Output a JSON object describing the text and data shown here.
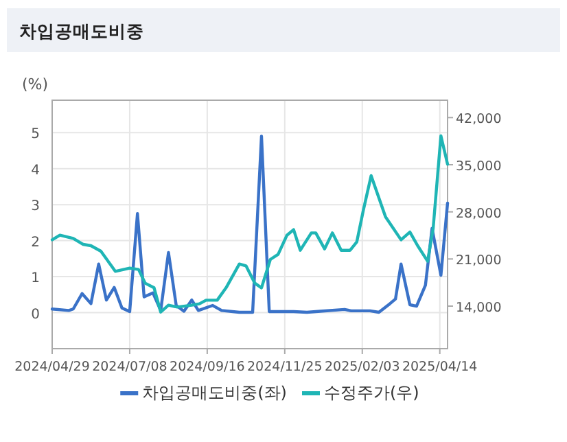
{
  "chart_data": {
    "type": "line",
    "title": "차입공매도비중",
    "ylabel": "(%)",
    "xlim": [
      "2024-04-29",
      "2025-04-21"
    ],
    "xticks": [
      {
        "value": "2024-04-29",
        "label": "2024/04/29"
      },
      {
        "value": "2024-07-08",
        "label": "2024/07/08"
      },
      {
        "value": "2024-09-16",
        "label": "2024/09/16"
      },
      {
        "value": "2024-11-25",
        "label": "2024/11/25"
      },
      {
        "value": "2025-02-03",
        "label": "2025/02/03"
      },
      {
        "value": "2025-04-14",
        "label": "2025/04/14"
      }
    ],
    "ylim": [
      -1,
      5.9
    ],
    "yticks": [
      0,
      1,
      2,
      3,
      4,
      5
    ],
    "y2lim": [
      7680,
      44580
    ],
    "y2ticks": [
      {
        "value": 14000,
        "label": "14,000"
      },
      {
        "value": 21000,
        "label": "21,000"
      },
      {
        "value": 28000,
        "label": "28,000"
      },
      {
        "value": 35000,
        "label": "35,000"
      },
      {
        "value": 42000,
        "label": "42,000"
      }
    ],
    "grid": true,
    "legend": "bottom",
    "marker": "none",
    "series": [
      {
        "name": "차입공매도비중(좌)",
        "color": "#3a72c8",
        "x": [
          "2024-04-29",
          "2024-05-14",
          "2024-05-18",
          "2024-05-26",
          "2024-06-03",
          "2024-06-10",
          "2024-06-17",
          "2024-06-24",
          "2024-07-01",
          "2024-07-08",
          "2024-07-15",
          "2024-07-21",
          "2024-07-29",
          "2024-08-05",
          "2024-08-12",
          "2024-08-19",
          "2024-08-26",
          "2024-09-02",
          "2024-09-08",
          "2024-09-21",
          "2024-09-29",
          "2024-10-15",
          "2024-10-27",
          "2024-11-04",
          "2024-11-11",
          "2024-12-03",
          "2024-12-15",
          "2024-12-27",
          "2025-01-18",
          "2025-01-24",
          "2025-02-10",
          "2025-02-18",
          "2025-02-28",
          "2025-03-05",
          "2025-03-10",
          "2025-03-18",
          "2025-03-24",
          "2025-04-01",
          "2025-04-07",
          "2025-04-15",
          "2025-04-21"
        ],
        "values": [
          0.1,
          0.06,
          0.1,
          0.53,
          0.25,
          1.35,
          0.35,
          0.7,
          0.13,
          0.03,
          2.75,
          0.44,
          0.55,
          0.06,
          1.67,
          0.2,
          0.04,
          0.35,
          0.06,
          0.2,
          0.06,
          0.01,
          0.01,
          4.9,
          0.03,
          0.03,
          0.01,
          0.04,
          0.09,
          0.05,
          0.05,
          0.01,
          0.25,
          0.38,
          1.35,
          0.22,
          0.18,
          0.76,
          2.34,
          1.04,
          3.04
        ]
      },
      {
        "name": "수정주가(우)",
        "color": "#1fb5b5",
        "axis": "y2",
        "x": [
          "2024-04-29",
          "2024-05-06",
          "2024-05-18",
          "2024-05-27",
          "2024-06-03",
          "2024-06-12",
          "2024-06-25",
          "2024-07-08",
          "2024-07-16",
          "2024-07-22",
          "2024-07-30",
          "2024-08-05",
          "2024-08-12",
          "2024-08-20",
          "2024-09-02",
          "2024-09-09",
          "2024-09-15",
          "2024-09-25",
          "2024-10-03",
          "2024-10-15",
          "2024-10-21",
          "2024-10-29",
          "2024-11-04",
          "2024-11-12",
          "2024-11-19",
          "2024-11-27",
          "2024-12-03",
          "2024-12-09",
          "2024-12-19",
          "2024-12-23",
          "2024-12-31",
          "2025-01-07",
          "2025-01-15",
          "2025-01-23",
          "2025-01-29",
          "2025-02-04",
          "2025-02-11",
          "2025-02-24",
          "2025-03-10",
          "2025-03-18",
          "2025-03-25",
          "2025-04-03",
          "2025-04-08",
          "2025-04-15",
          "2025-04-21"
        ],
        "values": [
          23850,
          24530,
          24060,
          23170,
          22970,
          22150,
          19170,
          19640,
          19440,
          17400,
          16720,
          13120,
          14140,
          13860,
          14140,
          14340,
          14880,
          14880,
          16720,
          20250,
          19980,
          17400,
          16720,
          20930,
          21680,
          24530,
          25350,
          22290,
          24870,
          24870,
          22500,
          24870,
          22290,
          22290,
          23510,
          28270,
          33370,
          27250,
          23850,
          25000,
          22970,
          20660,
          25550,
          39280,
          35070
        ]
      }
    ]
  }
}
